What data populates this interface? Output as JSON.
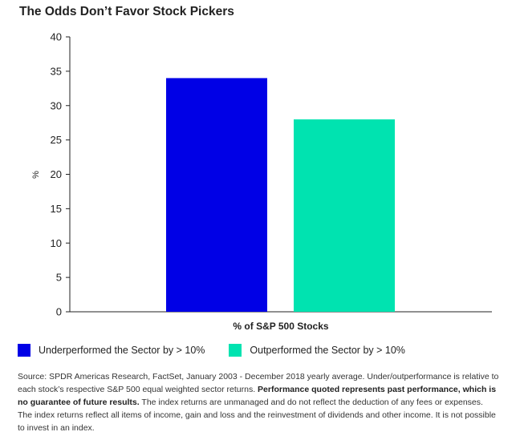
{
  "title": "The Odds Don’t Favor Stock Pickers",
  "chart_data": {
    "type": "bar",
    "categories": [
      "% of S&P 500 Stocks"
    ],
    "series": [
      {
        "name": "Underperformed the Sector by > 10%",
        "values": [
          34
        ],
        "color": "#0000e6"
      },
      {
        "name": "Outperformed the Sector by > 10%",
        "values": [
          28
        ],
        "color": "#00e3b0"
      }
    ],
    "xlabel": "% of S&P 500 Stocks",
    "ylabel": "%",
    "ylim": [
      0,
      40
    ],
    "yticks": [
      0,
      5,
      10,
      15,
      20,
      25,
      30,
      35,
      40
    ],
    "grid": false,
    "legend_position": "bottom-left"
  },
  "source": {
    "text_1": "Source: SPDR Americas Research, FactSet, January 2003 - December 2018 yearly average. Under/outperformance is relative to each stock’s respective S&P 500 equal weighted sector returns. ",
    "bold": "Performance quoted represents past performance, which is no guarantee of future results.",
    "text_2": " The index returns are unmanaged and do not reflect the deduction of any fees or expenses. The index returns reflect all items of income, gain and loss and the reinvestment of dividends and other income. It is not possible to invest in an index."
  }
}
